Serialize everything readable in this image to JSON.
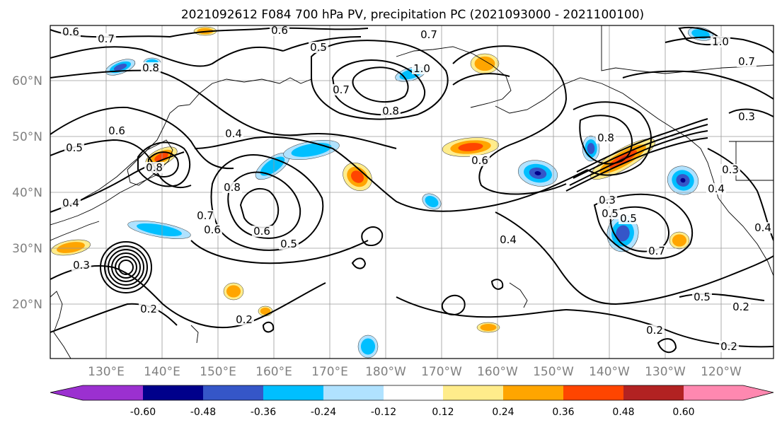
{
  "title": "2021092612 F084 700 hPa PV, precipitation PC (2021093000 - 2021100100)",
  "latitude_labels": [
    "60°N",
    "50°N",
    "40°N",
    "30°N",
    "20°N"
  ],
  "longitude_labels": [
    "130°E",
    "140°E",
    "150°E",
    "160°E",
    "170°E",
    "180°W",
    "170°W",
    "160°W",
    "150°W",
    "140°W",
    "130°W",
    "120°W"
  ],
  "contour_labels": [
    "0.6",
    "0.7",
    "0.6",
    "0.7",
    "0.5",
    "0.8",
    "1.0",
    "0.7",
    "0.8",
    "0.6",
    "0.5",
    "0.4",
    "0.7",
    "0.6",
    "0.8",
    "0.6",
    "0.8",
    "0.5",
    "0.4",
    "0.2",
    "0.2",
    "0.3",
    "0.4",
    "0.6",
    "0.8",
    "0.5",
    "0.3",
    "0.5",
    "0.7",
    "0.4",
    "0.5",
    "0.2",
    "0.2",
    "0.2",
    "0.7",
    "1.0",
    "0.3",
    "0.3",
    "0.4"
  ],
  "colorbar": {
    "tick_labels": [
      "-0.60",
      "-0.48",
      "-0.36",
      "-0.24",
      "-0.12",
      "0.12",
      "0.24",
      "0.36",
      "0.48",
      "0.60"
    ],
    "colors": [
      "#9b30d0",
      "#00008b",
      "#3556c8",
      "#00bfff",
      "#b0e2ff",
      "#ffffff",
      "#ffec8b",
      "#ffa500",
      "#ff4500",
      "#b22222",
      "#ff88b0"
    ]
  },
  "precip_blobs": [
    {
      "sign": "neg",
      "level": 2
    },
    {
      "sign": "neg",
      "level": 1
    },
    {
      "sign": "pos",
      "level": 2
    },
    {
      "sign": "pos",
      "level": 1
    },
    {
      "sign": "neg",
      "level": 1
    },
    {
      "sign": "pos",
      "level": 1
    },
    {
      "sign": "pos",
      "level": 2
    },
    {
      "sign": "neg",
      "level": 3
    },
    {
      "sign": "neg",
      "level": 2
    },
    {
      "sign": "pos",
      "level": 3
    },
    {
      "sign": "neg",
      "level": 3
    },
    {
      "sign": "neg",
      "level": 2
    },
    {
      "sign": "pos",
      "level": 1
    },
    {
      "sign": "neg",
      "level": 1
    },
    {
      "sign": "pos",
      "level": 2
    },
    {
      "sign": "neg",
      "level": 1
    },
    {
      "sign": "pos",
      "level": 1
    },
    {
      "sign": "neg",
      "level": 1
    },
    {
      "sign": "pos",
      "level": 1
    },
    {
      "sign": "neg",
      "level": 1
    },
    {
      "sign": "pos",
      "level": 1
    },
    {
      "sign": "neg",
      "level": 1
    },
    {
      "sign": "pos",
      "level": 1
    },
    {
      "sign": "neg",
      "level": 1
    }
  ]
}
